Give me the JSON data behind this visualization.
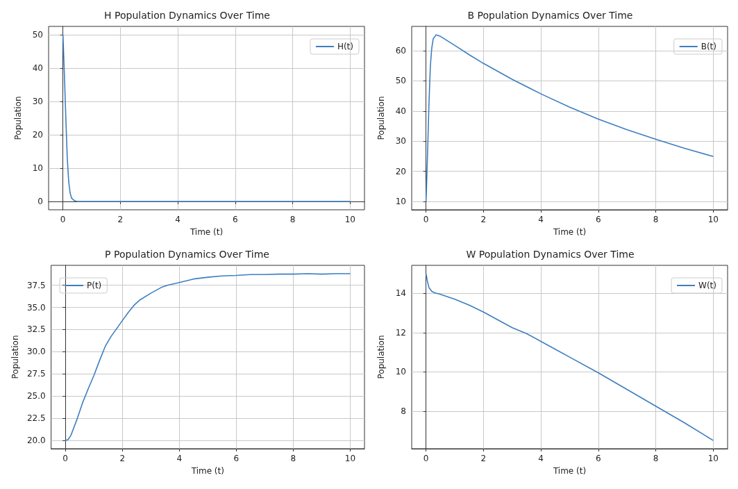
{
  "chart_data": [
    {
      "type": "line",
      "title": "H Population Dynamics Over Time",
      "xlabel": "Time (t)",
      "ylabel": "Population",
      "xlim": [
        -0.5,
        10.5
      ],
      "xticks": [
        0,
        2,
        4,
        6,
        8,
        10
      ],
      "ylim": [
        -2.5,
        52.5
      ],
      "yticks": [
        0,
        10,
        20,
        30,
        40,
        50
      ],
      "grid": true,
      "legend": "top right",
      "series": [
        {
          "name": "H(t)",
          "color": "#3d7ebf",
          "x": [
            0,
            0.05,
            0.1,
            0.15,
            0.2,
            0.25,
            0.3,
            0.4,
            0.5,
            1,
            2,
            4,
            6,
            8,
            10
          ],
          "values": [
            50,
            38,
            25,
            13,
            6,
            2.5,
            1,
            0.2,
            0,
            0,
            0,
            0,
            0,
            0,
            0
          ]
        }
      ]
    },
    {
      "type": "line",
      "title": "B Population Dynamics Over Time",
      "xlabel": "Time (t)",
      "ylabel": "Population",
      "xlim": [
        -0.5,
        10.5
      ],
      "xticks": [
        0,
        2,
        4,
        6,
        8,
        10
      ],
      "ylim": [
        7.2,
        68.1
      ],
      "yticks": [
        10,
        20,
        30,
        40,
        50,
        60
      ],
      "grid": true,
      "legend": "top right",
      "series": [
        {
          "name": "B(t)",
          "color": "#3d7ebf",
          "x": [
            0,
            0.05,
            0.1,
            0.15,
            0.2,
            0.25,
            0.35,
            0.5,
            1,
            1.5,
            2,
            3,
            4,
            5,
            6,
            7,
            8,
            9,
            10
          ],
          "values": [
            10,
            25,
            42,
            55,
            61,
            64,
            65.3,
            64.8,
            61.8,
            58.7,
            55.8,
            50.5,
            45.7,
            41.3,
            37.3,
            33.8,
            30.6,
            27.6,
            24.9
          ]
        }
      ]
    },
    {
      "type": "line",
      "title": "P Population Dynamics Over Time",
      "xlabel": "Time (t)",
      "ylabel": "Population",
      "xlim": [
        -0.5,
        10.5
      ],
      "xticks": [
        0,
        2,
        4,
        6,
        8,
        10
      ],
      "ylim": [
        19.06,
        39.74
      ],
      "yticks": [
        {
          "value": 20,
          "label": "20.0"
        },
        22.5,
        {
          "value": 25,
          "label": "25.0"
        },
        27.5,
        {
          "value": 30,
          "label": "30.0"
        },
        32.5,
        {
          "value": 35,
          "label": "35.0"
        },
        37.5
      ],
      "grid": true,
      "legend": "top left",
      "series": [
        {
          "name": "P(t)",
          "color": "#3d7ebf",
          "x": [
            0,
            0.1,
            0.2,
            0.4,
            0.6,
            0.8,
            1,
            1.2,
            1.4,
            1.6,
            1.8,
            2,
            2.2,
            2.4,
            2.6,
            3,
            3.4,
            3.6,
            4,
            4.5,
            5,
            5.5,
            6,
            6.5,
            7,
            7.5,
            8,
            8.5,
            9,
            9.5,
            10
          ],
          "values": [
            20,
            20.1,
            20.6,
            22.3,
            24.2,
            25.8,
            27.3,
            29,
            30.6,
            31.7,
            32.6,
            33.5,
            34.4,
            35.2,
            35.8,
            36.6,
            37.3,
            37.5,
            37.8,
            38.2,
            38.4,
            38.55,
            38.6,
            38.7,
            38.7,
            38.75,
            38.75,
            38.8,
            38.75,
            38.8,
            38.8
          ]
        }
      ]
    },
    {
      "type": "line",
      "title": "W Population Dynamics Over Time",
      "xlabel": "Time (t)",
      "ylabel": "Population",
      "xlim": [
        -0.5,
        10.5
      ],
      "xticks": [
        0,
        2,
        4,
        6,
        8,
        10
      ],
      "ylim": [
        6.08,
        15.43
      ],
      "yticks": [
        8,
        10,
        12,
        14
      ],
      "grid": true,
      "legend": "top right",
      "series": [
        {
          "name": "W(t)",
          "color": "#3d7ebf",
          "x": [
            0,
            0.05,
            0.1,
            0.2,
            0.3,
            0.5,
            1,
            1.5,
            2,
            2.5,
            3,
            3.5,
            4,
            5,
            6,
            7,
            8,
            9,
            10
          ],
          "values": [
            15,
            14.6,
            14.3,
            14.1,
            14.03,
            13.95,
            13.7,
            13.4,
            13.05,
            12.65,
            12.25,
            11.95,
            11.55,
            10.75,
            9.95,
            9.1,
            8.25,
            7.4,
            6.5
          ]
        }
      ]
    }
  ]
}
